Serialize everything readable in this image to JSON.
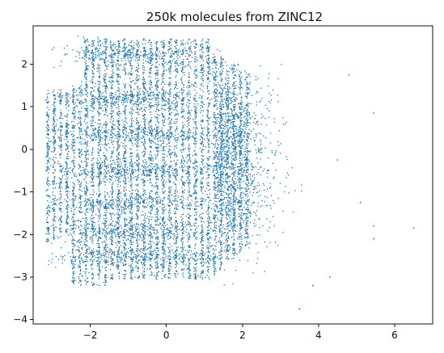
{
  "chart_data": {
    "type": "scatter",
    "title": "250k molecules from ZINC12",
    "xlabel": "",
    "ylabel": "",
    "xlim": [
      -3.5,
      7.0
    ],
    "ylim": [
      -4.1,
      2.9
    ],
    "x_ticks": [
      -2,
      0,
      2,
      4,
      6
    ],
    "x_tick_labels": [
      "−2",
      "0",
      "2",
      "4",
      "6"
    ],
    "y_ticks": [
      -4,
      -3,
      -2,
      -1,
      0,
      1,
      2
    ],
    "y_tick_labels": [
      "−4",
      "−3",
      "−2",
      "−1",
      "0",
      "1",
      "2"
    ],
    "grid": false,
    "legend": "none",
    "point_color": "#1f77b4",
    "series": [
      {
        "name": "",
        "approx_count": 250000,
        "dense_region": {
          "x_range": [
            -3.2,
            2.2
          ],
          "y_range": [
            -3.2,
            2.6
          ]
        },
        "outliers": [
          {
            "x": 4.8,
            "y": 1.75
          },
          {
            "x": 5.45,
            "y": 0.85
          },
          {
            "x": 4.5,
            "y": -0.25
          },
          {
            "x": 5.1,
            "y": -1.25
          },
          {
            "x": 5.45,
            "y": -1.8
          },
          {
            "x": 5.45,
            "y": -2.1
          },
          {
            "x": 6.5,
            "y": -1.85
          },
          {
            "x": 3.5,
            "y": -3.75
          },
          {
            "x": 3.85,
            "y": -3.2
          },
          {
            "x": 4.3,
            "y": -3.0
          }
        ]
      }
    ]
  }
}
